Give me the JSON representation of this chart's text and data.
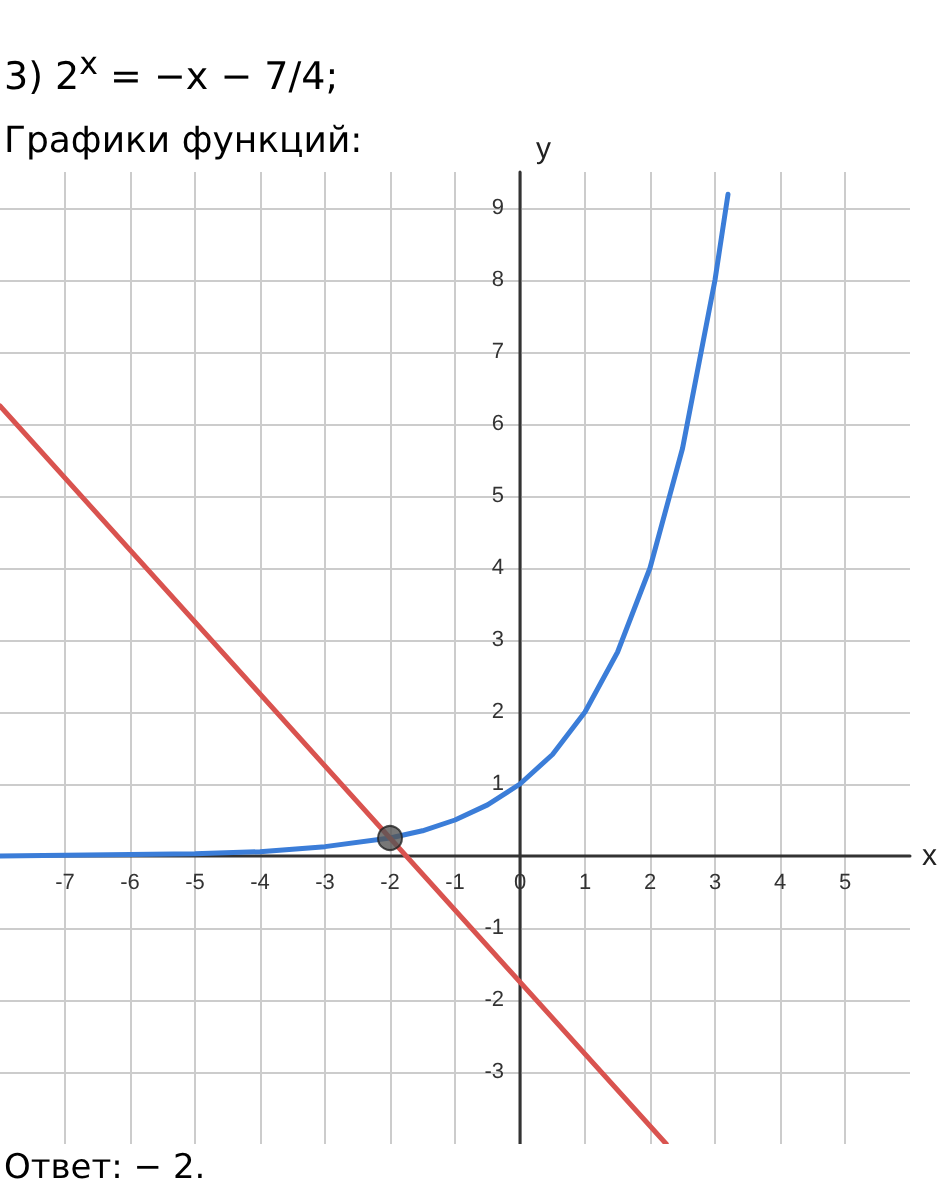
{
  "chart_data": {
    "type": "line",
    "title": "3) 2$^{x}$ = −x − 7/4;",
    "subtitle": "Графики функций:",
    "xlabel": "x",
    "ylabel": "y",
    "annotations": [
      "Ответ: − 2."
    ],
    "series": [
      {
        "type": "line",
        "color": "#3b7dd8",
        "x": [
          -8,
          -7,
          -6,
          -5,
          -4,
          -3,
          -2,
          -1.5,
          -1,
          -0.5,
          0,
          0.5,
          1,
          1.5,
          2,
          2.5,
          3,
          3.2
        ],
        "values": [
          0,
          0.01,
          0.02,
          0.03,
          0.06,
          0.13,
          0.25,
          0.35,
          0.5,
          0.71,
          1,
          1.41,
          2,
          2.83,
          4,
          5.66,
          8,
          9.19
        ]
      },
      {
        "type": "line",
        "color": "#d9534f",
        "x": [
          -8,
          2.25
        ],
        "values": [
          6.25,
          -4
        ]
      },
      {
        "type": "scatter",
        "color": "#555555",
        "marker": "circle",
        "x": [
          -2
        ],
        "values": [
          0.25
        ]
      }
    ],
    "xlim": [
      -8,
      6
    ],
    "ylim": [
      -4,
      9.5
    ],
    "xticks": [
      -7,
      -6,
      -5,
      -4,
      -3,
      -2,
      -1,
      0,
      1,
      2,
      3,
      4,
      5
    ],
    "yticks": [
      -3,
      -2,
      -1,
      1,
      2,
      3,
      4,
      5,
      6,
      7,
      8,
      9
    ],
    "grid": true,
    "marker": "none",
    "line_style": "solid"
  }
}
